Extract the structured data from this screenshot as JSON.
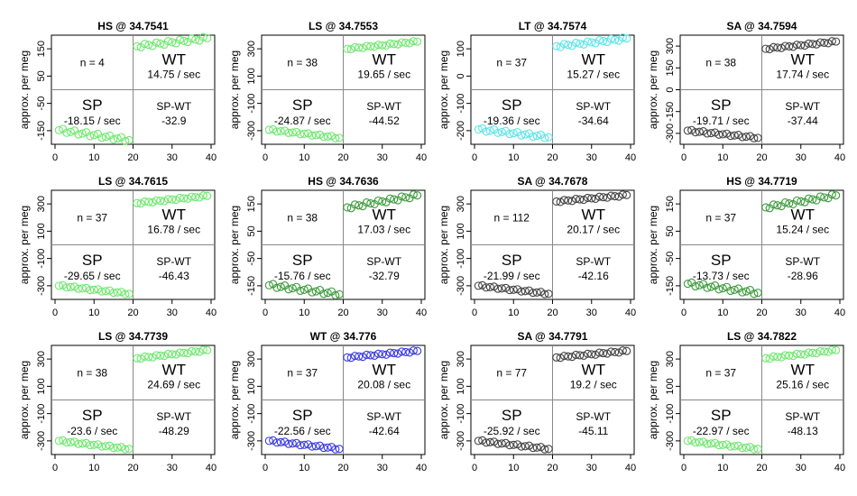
{
  "chart_data": [
    {
      "type": "scatter",
      "title": "HS @ 34.7541",
      "ylabel": "approx. per meg",
      "yticks": [
        "-150",
        "-50",
        "50",
        "150"
      ],
      "ylim": [
        -182,
        182
      ],
      "xticks": [
        "0",
        "10",
        "20",
        "30",
        "40"
      ],
      "xlim": [
        0,
        40
      ],
      "n_label": "n = 4",
      "wt_label": "WT",
      "wt_rate": "14.75 / sec",
      "sp_label": "SP",
      "sp_rate": "-18.15 / sec",
      "diff_label": "SP-WT",
      "diff_value": "-32.9",
      "color": "#6ee86e",
      "sp_start": -135,
      "sp_end": -168,
      "wt_start": 145,
      "wt_end": 172
    },
    {
      "type": "scatter",
      "title": "LS @ 34.7553",
      "ylabel": "approx. per meg",
      "yticks": [
        "-300",
        "-100",
        "100",
        "300"
      ],
      "ylim": [
        -340,
        340
      ],
      "xticks": [
        "0",
        "10",
        "20",
        "30",
        "40"
      ],
      "xlim": [
        0,
        40
      ],
      "n_label": "n = 38",
      "wt_label": "WT",
      "wt_rate": "19.65 / sec",
      "sp_label": "SP",
      "sp_rate": "-24.87 / sec",
      "diff_label": "SP-WT",
      "diff_value": "-44.52",
      "color": "#6ee86e",
      "sp_start": -250,
      "sp_end": -300,
      "wt_start": 255,
      "wt_end": 300
    },
    {
      "type": "scatter",
      "title": "LT @ 34.7574",
      "ylabel": "approx. per meg",
      "yticks": [
        "-200",
        "-100",
        "0",
        "100"
      ],
      "ylim": [
        -228,
        198
      ],
      "xticks": [
        "0",
        "10",
        "20",
        "30",
        "40"
      ],
      "xlim": [
        0,
        40
      ],
      "n_label": "n = 37",
      "wt_label": "WT",
      "wt_rate": "15.27 / sec",
      "sp_label": "SP",
      "sp_rate": "-19.36 / sec",
      "diff_label": "SP-WT",
      "diff_value": "-34.64",
      "color": "#5de5e8",
      "sp_start": -170,
      "sp_end": -200,
      "wt_start": 155,
      "wt_end": 185
    },
    {
      "type": "scatter",
      "title": "SA @ 34.7594",
      "ylabel": "approx. per meg",
      "yticks": [
        "-300",
        "-150",
        "0",
        "150",
        "300"
      ],
      "ylim": [
        -340,
        340
      ],
      "xticks": [
        "0",
        "10",
        "20",
        "30",
        "40"
      ],
      "xlim": [
        0,
        40
      ],
      "n_label": "n = 38",
      "wt_label": "WT",
      "wt_rate": "17.74 / sec",
      "sp_label": "SP",
      "sp_rate": "-19.71 / sec",
      "diff_label": "SP-WT",
      "diff_value": "-37.44",
      "color": "#444444",
      "sp_start": -255,
      "sp_end": -300,
      "wt_start": 255,
      "wt_end": 300
    },
    {
      "type": "scatter",
      "title": "LS @ 34.7615",
      "ylabel": "approx. per meg",
      "yticks": [
        "-300",
        "-100",
        "100",
        "300"
      ],
      "ylim": [
        -340,
        340
      ],
      "xticks": [
        "0",
        "10",
        "20",
        "30",
        "40"
      ],
      "xlim": [
        0,
        40
      ],
      "n_label": "n = 37",
      "wt_label": "WT",
      "wt_rate": "16.78 / sec",
      "sp_label": "SP",
      "sp_rate": "-29.65 / sec",
      "diff_label": "SP-WT",
      "diff_value": "-46.43",
      "color": "#6ee86e",
      "sp_start": -255,
      "sp_end": -305,
      "wt_start": 260,
      "wt_end": 305
    },
    {
      "type": "scatter",
      "title": "HS @ 34.7636",
      "ylabel": "approx. per meg",
      "yticks": [
        "-150",
        "-50",
        "50",
        "150"
      ],
      "ylim": [
        -182,
        182
      ],
      "xticks": [
        "0",
        "10",
        "20",
        "30",
        "40"
      ],
      "xlim": [
        0,
        40
      ],
      "n_label": "n = 38",
      "wt_label": "WT",
      "wt_rate": "17.03 / sec",
      "sp_label": "SP",
      "sp_rate": "-15.76 / sec",
      "diff_label": "SP-WT",
      "diff_value": "-32.79",
      "color": "#3a9a3a",
      "sp_start": -135,
      "sp_end": -165,
      "wt_start": 125,
      "wt_end": 165
    },
    {
      "type": "scatter",
      "title": "SA @ 34.7678",
      "ylabel": "approx. per meg",
      "yticks": [
        "-300",
        "-100",
        "100",
        "300"
      ],
      "ylim": [
        -340,
        340
      ],
      "xticks": [
        "0",
        "10",
        "20",
        "30",
        "40"
      ],
      "xlim": [
        0,
        40
      ],
      "n_label": "n = 112",
      "wt_label": "WT",
      "wt_rate": "20.17 / sec",
      "sp_label": "SP",
      "sp_rate": "-21.99 / sec",
      "diff_label": "SP-WT",
      "diff_value": "-42.16",
      "color": "#444444",
      "sp_start": -255,
      "sp_end": -305,
      "wt_start": 270,
      "wt_end": 310
    },
    {
      "type": "scatter",
      "title": "HS @ 34.7719",
      "ylabel": "approx. per meg",
      "yticks": [
        "-150",
        "-50",
        "50",
        "150"
      ],
      "ylim": [
        -182,
        182
      ],
      "xticks": [
        "0",
        "10",
        "20",
        "30",
        "40"
      ],
      "xlim": [
        0,
        40
      ],
      "n_label": "n = 37",
      "wt_label": "WT",
      "wt_rate": "15.24 / sec",
      "sp_label": "SP",
      "sp_rate": "-13.73 / sec",
      "diff_label": "SP-WT",
      "diff_value": "-28.96",
      "color": "#3a9a3a",
      "sp_start": -130,
      "sp_end": -160,
      "wt_start": 125,
      "wt_end": 165
    },
    {
      "type": "scatter",
      "title": "LS @ 34.7739",
      "ylabel": "approx. per meg",
      "yticks": [
        "-300",
        "-100",
        "100",
        "300"
      ],
      "ylim": [
        -340,
        340
      ],
      "xticks": [
        "0",
        "10",
        "20",
        "30",
        "40"
      ],
      "xlim": [
        0,
        40
      ],
      "n_label": "n = 38",
      "wt_label": "WT",
      "wt_rate": "24.69 / sec",
      "sp_label": "SP",
      "sp_rate": "-23.6 / sec",
      "diff_label": "SP-WT",
      "diff_value": "-48.29",
      "color": "#6ee86e",
      "sp_start": -255,
      "sp_end": -305,
      "wt_start": 260,
      "wt_end": 310
    },
    {
      "type": "scatter",
      "title": "WT @ 34.776",
      "ylabel": "approx. per meg",
      "yticks": [
        "-300",
        "-100",
        "100",
        "300"
      ],
      "ylim": [
        -340,
        340
      ],
      "xticks": [
        "0",
        "10",
        "20",
        "30",
        "40"
      ],
      "xlim": [
        0,
        40
      ],
      "n_label": "n = 37",
      "wt_label": "WT",
      "wt_rate": "20.08 / sec",
      "sp_label": "SP",
      "sp_rate": "-22.56 / sec",
      "diff_label": "SP-WT",
      "diff_value": "-42.64",
      "color": "#3a3ae0",
      "sp_start": -255,
      "sp_end": -305,
      "wt_start": 265,
      "wt_end": 305
    },
    {
      "type": "scatter",
      "title": "SA @ 34.7791",
      "ylabel": "approx. per meg",
      "yticks": [
        "-300",
        "-100",
        "100",
        "300"
      ],
      "ylim": [
        -340,
        340
      ],
      "xticks": [
        "0",
        "10",
        "20",
        "30",
        "40"
      ],
      "xlim": [
        0,
        40
      ],
      "n_label": "n = 77",
      "wt_label": "WT",
      "wt_rate": "19.2 / sec",
      "sp_label": "SP",
      "sp_rate": "-25.92 / sec",
      "diff_label": "SP-WT",
      "diff_value": "-45.11",
      "color": "#444444",
      "sp_start": -255,
      "sp_end": -305,
      "wt_start": 265,
      "wt_end": 305
    },
    {
      "type": "scatter",
      "title": "LS @ 34.7822",
      "ylabel": "approx. per meg",
      "yticks": [
        "-300",
        "-100",
        "100",
        "300"
      ],
      "ylim": [
        -340,
        340
      ],
      "xticks": [
        "0",
        "10",
        "20",
        "30",
        "40"
      ],
      "xlim": [
        0,
        40
      ],
      "n_label": "n = 37",
      "wt_label": "WT",
      "wt_rate": "25.16 / sec",
      "sp_label": "SP",
      "sp_rate": "-22.97 / sec",
      "diff_label": "SP-WT",
      "diff_value": "-48.13",
      "color": "#6ee86e",
      "sp_start": -255,
      "sp_end": -305,
      "wt_start": 260,
      "wt_end": 310
    }
  ]
}
